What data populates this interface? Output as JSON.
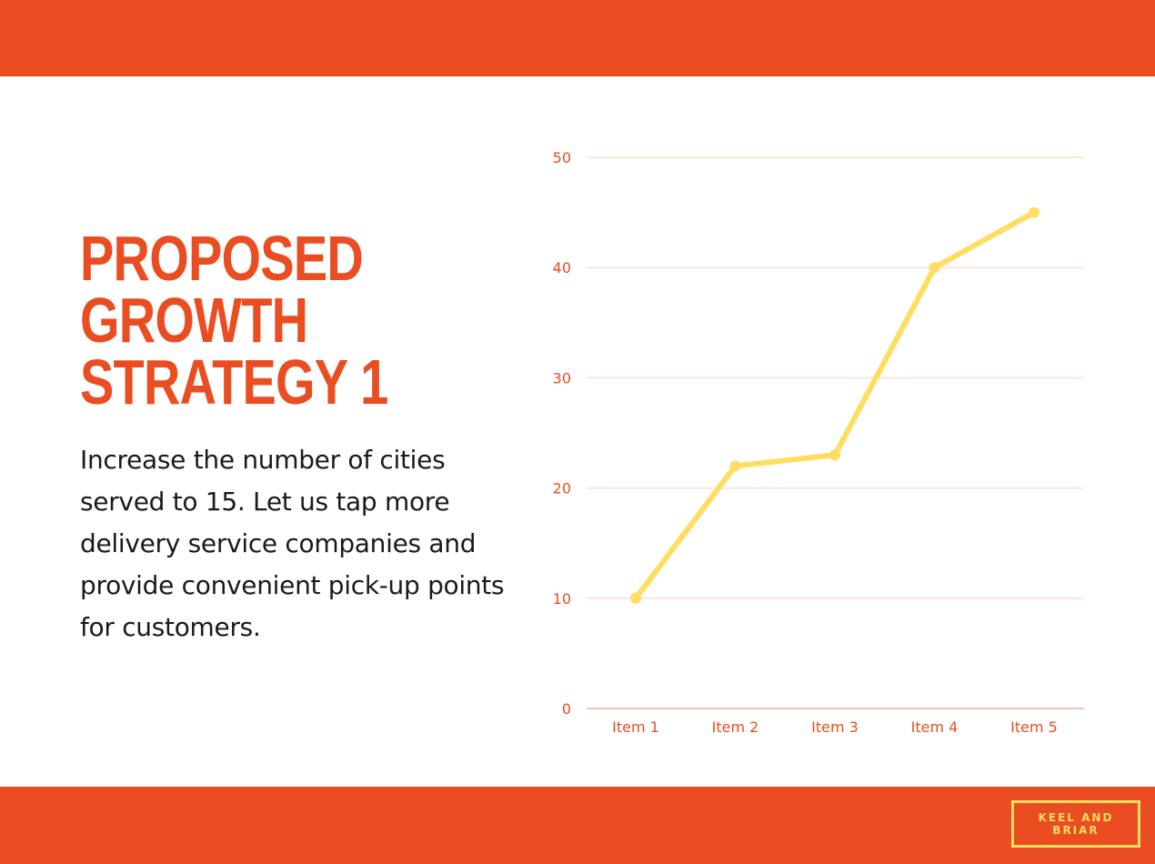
{
  "colors": {
    "brand_orange": "#EA4D21",
    "line_yellow": "#FFDD60",
    "grid": "#FDE4DE",
    "axis": "#F7C3B5"
  },
  "slide": {
    "title_lines": [
      "PROPOSED",
      "GROWTH",
      "STRATEGY 1"
    ],
    "body": "Increase the number of cities served to 15. Let us tap more delivery service companies and provide convenient pick-up points for customers.",
    "brand": "KEEL AND BRIAR"
  },
  "chart_data": {
    "type": "line",
    "title": "",
    "xlabel": "",
    "ylabel": "",
    "categories": [
      "Item 1",
      "Item 2",
      "Item 3",
      "Item 4",
      "Item 5"
    ],
    "values": [
      10,
      22,
      23,
      40,
      45
    ],
    "ylim": [
      0,
      50
    ],
    "yticks": [
      0,
      10,
      20,
      30,
      40,
      50
    ],
    "grid": true,
    "legend": "none"
  }
}
